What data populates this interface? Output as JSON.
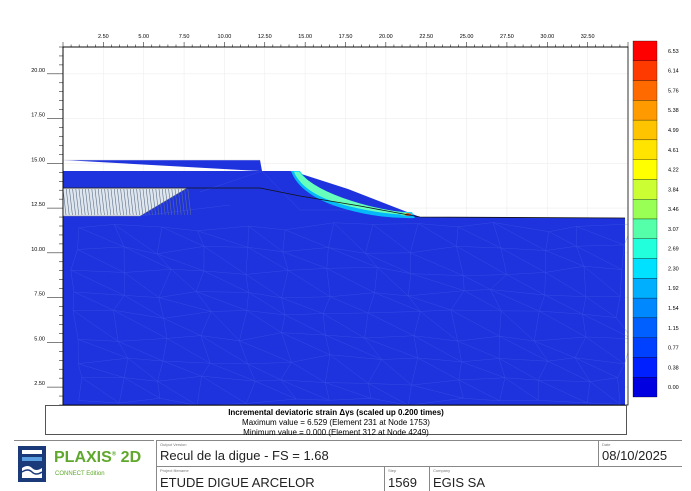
{
  "plot": {
    "x_ticks": [
      "2.50",
      "5.00",
      "7.50",
      "10.00",
      "12.50",
      "15.00",
      "17.50",
      "20.00",
      "22.50",
      "25.00",
      "27.50",
      "30.00",
      "32.50"
    ],
    "y_ticks": [
      "20.00",
      "17.50",
      "15.00",
      "12.50",
      "10.00",
      "7.50",
      "5.00",
      "2.50"
    ],
    "x_range": [
      0,
      35
    ],
    "y_range": [
      1.5,
      21.5
    ],
    "mesh_color": "#1e33dd",
    "background_color": "#ffffff"
  },
  "legend": {
    "values": [
      "6.53",
      "6.14",
      "5.76",
      "5.38",
      "4.99",
      "4.61",
      "4.22",
      "3.84",
      "3.46",
      "3.07",
      "2.69",
      "2.30",
      "1.92",
      "1.54",
      "1.15",
      "0.77",
      "0.38",
      "0.00"
    ],
    "colors": [
      "#ff0000",
      "#ff3a00",
      "#ff6a00",
      "#ff9a00",
      "#ffc400",
      "#ffe400",
      "#ffff00",
      "#ccff33",
      "#99ff55",
      "#55ffaa",
      "#22ffdd",
      "#00e0ff",
      "#00b0ff",
      "#0088ff",
      "#0060ff",
      "#0040ff",
      "#0020ff",
      "#0000e0"
    ]
  },
  "result": {
    "title": "Incremental deviatoric strain Δγs (scaled up 0.200 times)",
    "max_line": "Maximum value = 6.529  (Element 231 at Node 1753)",
    "min_line": "Minimum value = 0.000  (Element 312 at Node 4249)"
  },
  "footer": {
    "brand": "PLAXIS",
    "brand_sup": "®",
    "brand_2d": "2D",
    "edition": "CONNECT Edition",
    "output_caption": "Output Version",
    "title": "Recul de la digue - FS = 1.68",
    "date_caption": "Date",
    "date": "08/10/2025",
    "project_caption": "Project filename",
    "project": "ETUDE DIGUE ARCELOR",
    "step_caption": "Step",
    "step": "1569",
    "company_caption": "Company",
    "company": "EGIS SA"
  }
}
